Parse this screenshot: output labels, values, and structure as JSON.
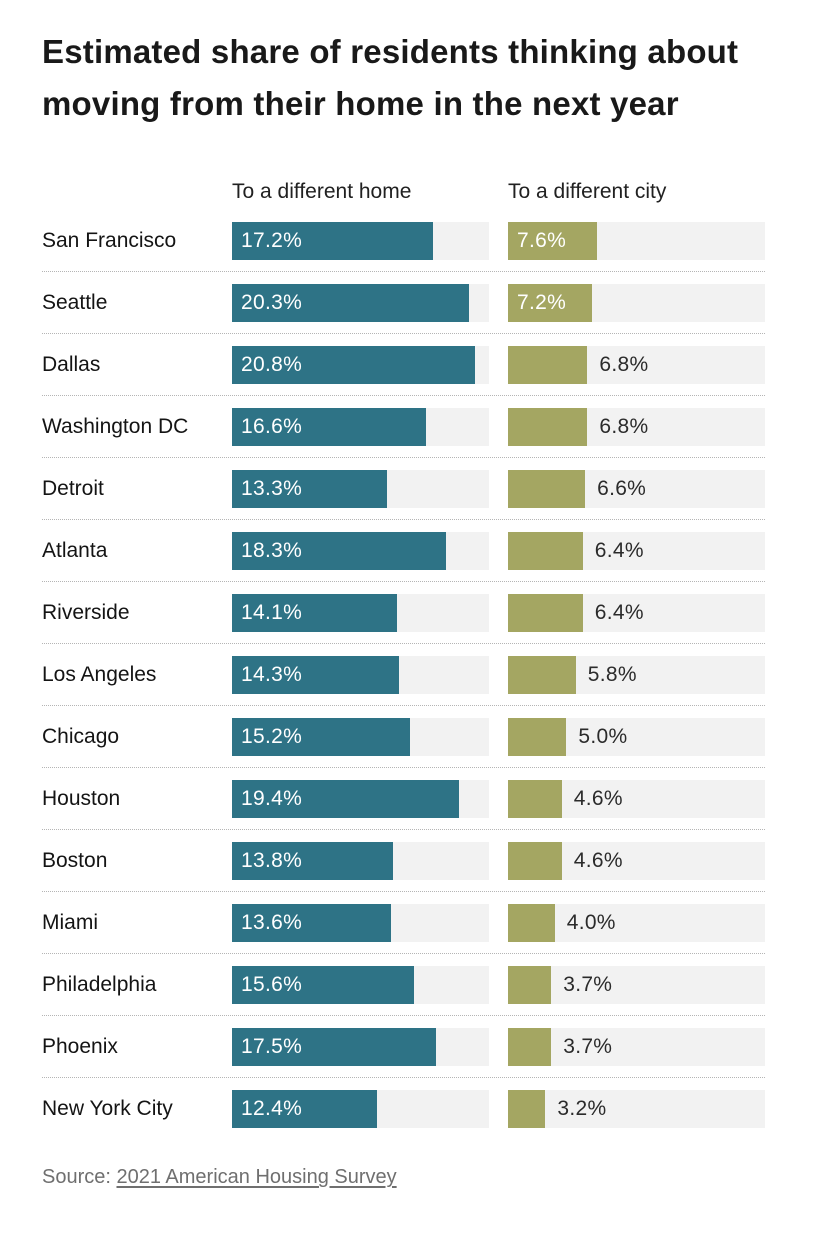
{
  "title": "Estimated share of residents thinking about moving from their home in the next year",
  "chart_data": {
    "type": "bar",
    "orientation": "horizontal",
    "title": "Estimated share of residents thinking about moving from their home in the next year",
    "categories": [
      "San Francisco",
      "Seattle",
      "Dallas",
      "Washington DC",
      "Detroit",
      "Atlanta",
      "Riverside",
      "Los Angeles",
      "Chicago",
      "Houston",
      "Boston",
      "Miami",
      "Philadelphia",
      "Phoenix",
      "New York City"
    ],
    "series": [
      {
        "name": "To a different home",
        "color": "#2e7386",
        "values": [
          17.2,
          20.3,
          20.8,
          16.6,
          13.3,
          18.3,
          14.1,
          14.3,
          15.2,
          19.4,
          13.8,
          13.6,
          15.6,
          17.5,
          12.4
        ],
        "labels": [
          "17.2%",
          "20.3%",
          "20.8%",
          "16.6%",
          "13.3%",
          "18.3%",
          "14.1%",
          "14.3%",
          "15.2%",
          "19.4%",
          "13.8%",
          "13.6%",
          "15.6%",
          "17.5%",
          "12.4%"
        ]
      },
      {
        "name": "To a different city",
        "color": "#a4a662",
        "values": [
          7.6,
          7.2,
          6.8,
          6.8,
          6.6,
          6.4,
          6.4,
          5.8,
          5.0,
          4.6,
          4.6,
          4.0,
          3.7,
          3.7,
          3.2
        ],
        "labels": [
          "7.6%",
          "7.2%",
          "6.8%",
          "6.8%",
          "6.6%",
          "6.4%",
          "6.4%",
          "5.8%",
          "5.0%",
          "4.6%",
          "4.6%",
          "4.0%",
          "3.7%",
          "3.7%",
          "3.2%"
        ]
      }
    ],
    "xlim": [
      0,
      22
    ],
    "inside_label_threshold": 7,
    "track_color": "#f2f2f2",
    "grid": false,
    "legend_position": "column-headers"
  },
  "source": {
    "prefix": "Source: ",
    "link_text": "2021 American Housing Survey"
  }
}
